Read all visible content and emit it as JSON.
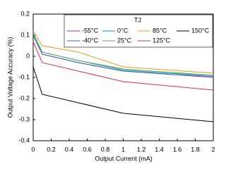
{
  "chart_data": {
    "type": "line",
    "xlabel": "Output Current (mA)",
    "ylabel": "Output Voltage Accuracy (%)",
    "legend_title": "TJ",
    "legend": "upper right",
    "grid": false,
    "x": [
      0,
      0.1,
      0.5,
      1,
      1.5,
      2
    ],
    "series": [
      {
        "name": "-55°C",
        "color": "#993399",
        "values": [
          0.1,
          0.01,
          -0.03,
          -0.07,
          -0.085,
          -0.1
        ]
      },
      {
        "name": "-40°C",
        "color": "#3366cc",
        "values": [
          0.1,
          0.01,
          -0.03,
          -0.07,
          -0.085,
          -0.095
        ]
      },
      {
        "name": "0°C",
        "color": "#009999",
        "values": [
          0.11,
          0.02,
          -0.02,
          -0.065,
          -0.08,
          -0.09
        ]
      },
      {
        "name": "25°C",
        "color": "#66aa55",
        "values": [
          0.11,
          0.02,
          -0.02,
          -0.06,
          -0.075,
          -0.09
        ]
      },
      {
        "name": "85°C",
        "color": "#e69a1a",
        "values": [
          0.12,
          0.05,
          0.02,
          -0.05,
          -0.065,
          -0.08
        ]
      },
      {
        "name": "125°C",
        "color": "#e0303a",
        "values": [
          0.07,
          -0.03,
          -0.07,
          -0.12,
          -0.14,
          -0.16
        ]
      },
      {
        "name": "150°C",
        "color": "#000000",
        "values": [
          -0.05,
          -0.18,
          -0.22,
          -0.27,
          -0.29,
          -0.31
        ]
      }
    ],
    "xlim": [
      0,
      2
    ],
    "xticks": [
      0,
      0.2,
      0.4,
      0.6,
      0.8,
      1,
      1.2,
      1.4,
      1.6,
      1.8,
      2
    ],
    "ylim": [
      -0.4,
      0.2
    ],
    "yticks": [
      -0.4,
      -0.3,
      -0.2,
      -0.1,
      0,
      0.1,
      0.2
    ]
  }
}
